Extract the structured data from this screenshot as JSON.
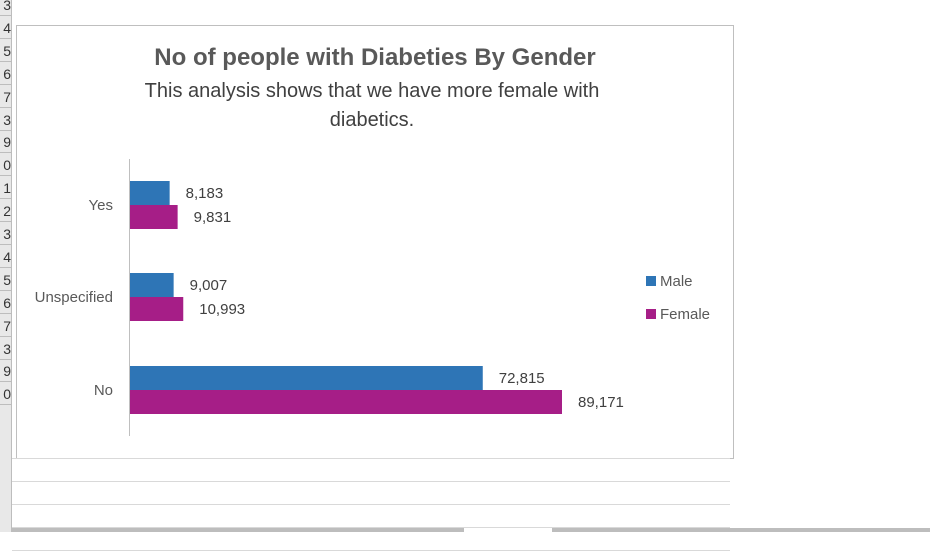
{
  "sheet": {
    "row_fragments": [
      "3",
      "4",
      "5",
      "6",
      "7",
      "3",
      "9",
      "0",
      "1",
      "2",
      "3",
      "4",
      "5",
      "6",
      "7",
      "3",
      "9",
      "0"
    ]
  },
  "chart_data": {
    "type": "bar",
    "orientation": "horizontal",
    "title": "No of people with Diabeties By Gender",
    "subtitle": "This analysis shows that we have more female with diabetics.",
    "categories": [
      "Yes",
      "Unspecified",
      "No"
    ],
    "series": [
      {
        "name": "Male",
        "values": [
          8183,
          9007,
          72815
        ],
        "labels": [
          "8,183",
          "9,007",
          "72,815"
        ],
        "color": "#2e75b6"
      },
      {
        "name": "Female",
        "values": [
          9831,
          10993,
          89171
        ],
        "labels": [
          "9,831",
          "10,993",
          "89,171"
        ],
        "color": "#a61e87"
      }
    ],
    "xlim": [
      0,
      100000
    ],
    "grid": false,
    "legend": "right"
  }
}
